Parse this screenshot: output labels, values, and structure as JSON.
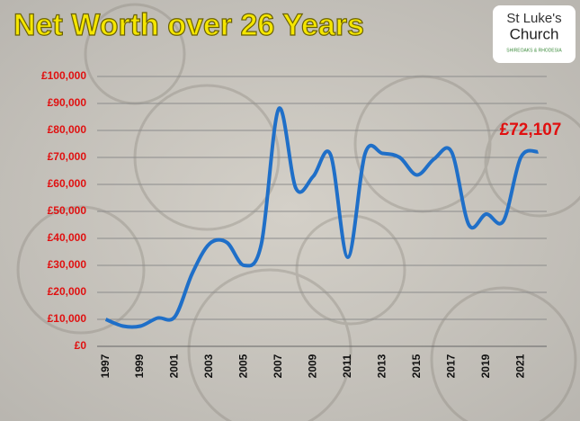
{
  "chart_data": {
    "type": "line",
    "title": "Net Worth over 26 Years",
    "categories": [
      "1997",
      null,
      "1999",
      null,
      "2001",
      null,
      "2003",
      null,
      "2005",
      null,
      "2007",
      null,
      "2009",
      null,
      "2011",
      null,
      "2013",
      null,
      "2015",
      null,
      "2017",
      null,
      "2019",
      null,
      "2021",
      null
    ],
    "series": [
      {
        "color": "#1f6fc8",
        "values": [
          10000,
          7500,
          7500,
          10500,
          11000,
          27000,
          38000,
          38500,
          30000,
          38000,
          88000,
          58500,
          63000,
          71000,
          33000,
          71500,
          71500,
          70000,
          63500,
          69500,
          72000,
          45000,
          49000,
          46500,
          70000,
          72107
        ]
      }
    ],
    "ylim": [
      0,
      100000
    ],
    "yticks": [
      {
        "value": 0,
        "label": "£0"
      },
      {
        "value": 10000,
        "label": "£10,000"
      },
      {
        "value": 20000,
        "label": "£20,000"
      },
      {
        "value": 30000,
        "label": "£30,000"
      },
      {
        "value": 40000,
        "label": "£40,000"
      },
      {
        "value": 50000,
        "label": "£50,000"
      },
      {
        "value": 60000,
        "label": "£60,000"
      },
      {
        "value": 70000,
        "label": "£70,000"
      },
      {
        "value": 80000,
        "label": "£80,000"
      },
      {
        "value": 90000,
        "label": "£90,000"
      },
      {
        "value": 100000,
        "label": "£100,000"
      }
    ],
    "grid": true,
    "annotation": "£72,107"
  },
  "logo": {
    "line1": "St Luke's",
    "line2": "Church",
    "line3": "SHIREOAKS & RHODESIA"
  }
}
